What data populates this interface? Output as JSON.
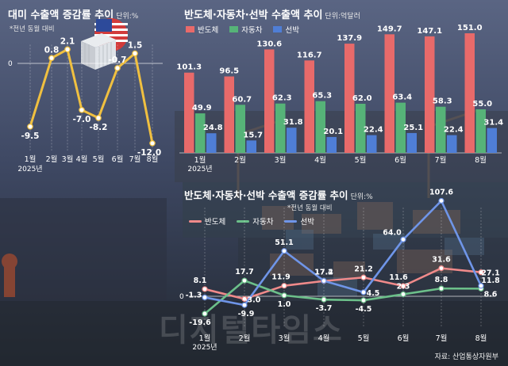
{
  "chart_data": [
    {
      "type": "line",
      "title": "대미 수출액 증감률 추이",
      "unit": "단위:%",
      "note": "*전년 동월 대비",
      "categories": [
        "1월",
        "2월",
        "3월",
        "4월",
        "5월",
        "6월",
        "7월",
        "8월"
      ],
      "year_label": "2025년",
      "zero_label": "0",
      "values": [
        -9.5,
        0.8,
        2.1,
        -7.0,
        -8.2,
        -0.7,
        1.5,
        -12.0
      ],
      "value_labels": [
        "-9.5",
        "0.8",
        "2.1",
        "-7.0",
        "-8.2",
        "-0.7",
        "1.5",
        "-12.0"
      ],
      "color": "#f0c040"
    },
    {
      "type": "bar",
      "title": "반도체·자동차·선박 수출액 추이",
      "unit": "단위:억달러",
      "categories": [
        "1월",
        "2월",
        "3월",
        "4월",
        "5월",
        "6월",
        "7월",
        "8월"
      ],
      "year_label": "2025년",
      "series": [
        {
          "name": "반도체",
          "color": "#e86a6a",
          "values": [
            101.3,
            96.5,
            130.6,
            116.7,
            137.9,
            149.7,
            147.1,
            151.0
          ],
          "labels": [
            "101.3",
            "96.5",
            "130.6",
            "116.7",
            "137.9",
            "149.7",
            "147.1",
            "151.0"
          ]
        },
        {
          "name": "자동차",
          "color": "#56b378",
          "values": [
            49.9,
            60.7,
            62.3,
            65.3,
            62.0,
            63.4,
            58.3,
            55.0
          ],
          "labels": [
            "49.9",
            "60.7",
            "62.3",
            "65.3",
            "62.0",
            "63.4",
            "58.3",
            "55.0"
          ]
        },
        {
          "name": "선박",
          "color": "#4f7ed6",
          "values": [
            24.8,
            15.7,
            31.8,
            20.1,
            22.4,
            25.1,
            22.4,
            31.4
          ],
          "labels": [
            "24.8",
            "15.7",
            "31.8",
            "20.1",
            "22.4",
            "25.1",
            "22.4",
            "31.4"
          ]
        }
      ],
      "ylim": [
        0,
        160
      ]
    },
    {
      "type": "line",
      "title": "반도체·자동차·선박 수출액 증감률 추이",
      "unit": "단위:%",
      "note": "*전년 동월 대비",
      "categories": [
        "1월",
        "2월",
        "3월",
        "4월",
        "5월",
        "6월",
        "7월",
        "8월"
      ],
      "year_label": "2025년",
      "zero_label": "0",
      "series": [
        {
          "name": "반도체",
          "color": "#f08a8a",
          "values": [
            8.1,
            -3.0,
            11.9,
            17.2,
            21.2,
            11.6,
            31.6,
            27.1
          ],
          "labels": [
            "8.1",
            "-3.0",
            "11.9",
            "17.2",
            "21.2",
            "11.6",
            "31.6",
            "27.1"
          ]
        },
        {
          "name": "자동차",
          "color": "#6cc08a",
          "values": [
            -19.6,
            17.7,
            1.0,
            -3.7,
            -4.5,
            2.3,
            8.8,
            8.6
          ],
          "labels": [
            "-19.6",
            "17.7",
            "1.0",
            "-3.7",
            "-4.5",
            "2.3",
            "8.8",
            "8.6"
          ]
        },
        {
          "name": "선박",
          "color": "#6f95e8",
          "values": [
            -1.3,
            -9.9,
            51.1,
            17.4,
            4.5,
            64.0,
            107.6,
            11.8
          ],
          "labels": [
            "-1.3",
            "-9.9",
            "51.1",
            "17.4",
            "4.5",
            "64.0",
            "107.6",
            "11.8"
          ]
        }
      ]
    }
  ],
  "watermark": "디지털타임스",
  "source": "자료: 산업통상자원부"
}
